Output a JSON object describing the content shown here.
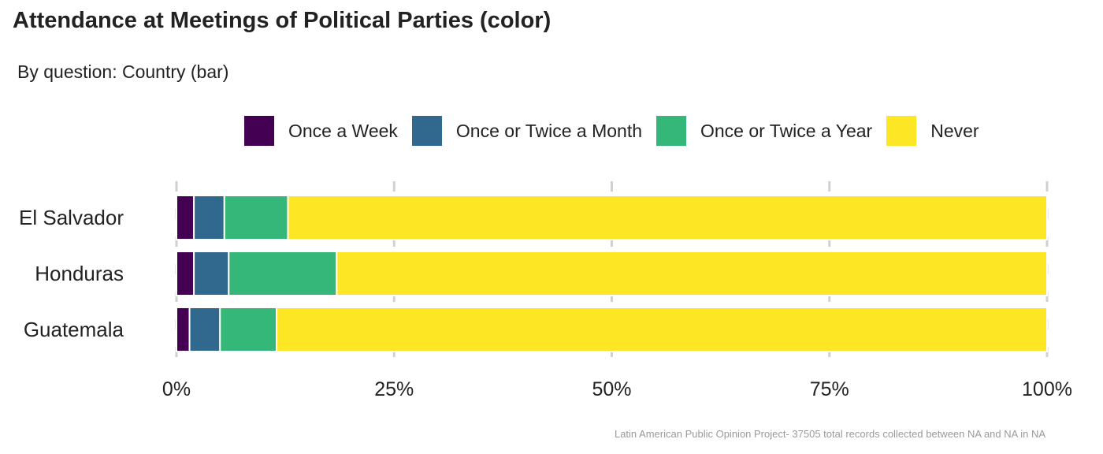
{
  "title": "Attendance at Meetings of Political Parties (color)",
  "subtitle": "By question: Country (bar)",
  "caption": "Latin American Public Opinion Project- 37505 total records collected between NA and NA in  NA",
  "colors": {
    "once_a_week": "#440154",
    "once_or_twice_a_month": "#31688E",
    "once_or_twice_a_year": "#35B779",
    "never": "#FDE725"
  },
  "chart_data": {
    "type": "bar",
    "orientation": "horizontal",
    "stacked": true,
    "categories": [
      "El Salvador",
      "Honduras",
      "Guatemala"
    ],
    "series": [
      {
        "name": "Once a Week",
        "values": [
          2,
          2,
          1.5
        ]
      },
      {
        "name": "Once or Twice a Month",
        "values": [
          3.5,
          4,
          3.5
        ]
      },
      {
        "name": "Once or Twice a Year",
        "values": [
          7.3,
          12.4,
          6.5
        ]
      },
      {
        "name": "Never",
        "values": [
          87.2,
          81.6,
          88.5
        ]
      }
    ],
    "xlim": [
      0,
      100
    ],
    "x_ticks": [
      "0%",
      "25%",
      "50%",
      "75%",
      "100%"
    ],
    "x_tick_values": [
      0,
      25,
      50,
      75,
      100
    ],
    "legend_position": "top",
    "grid": "vertical"
  }
}
